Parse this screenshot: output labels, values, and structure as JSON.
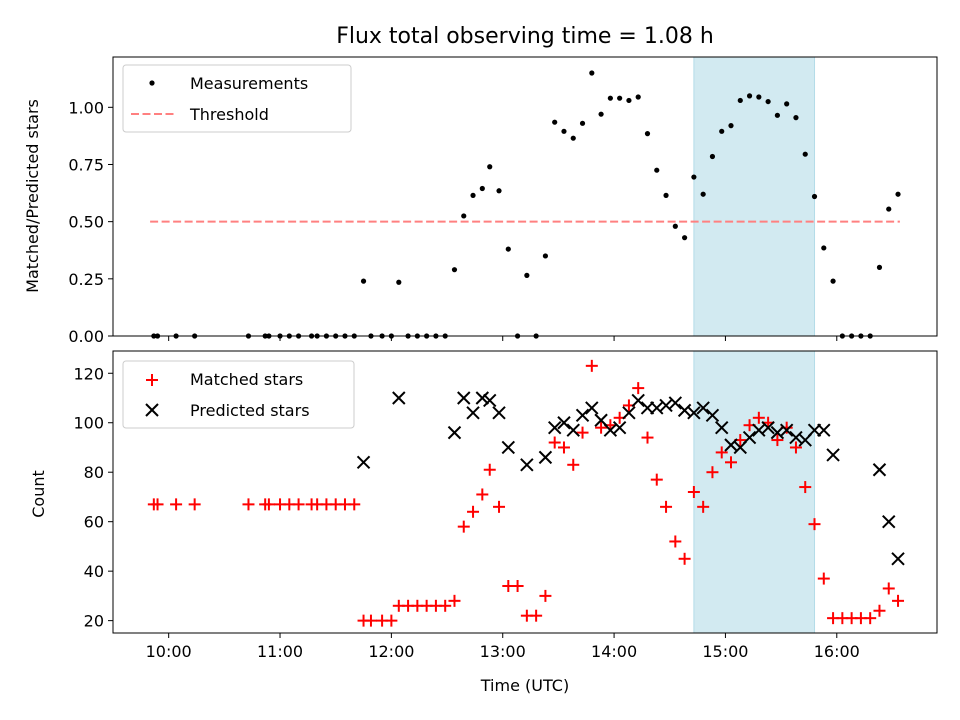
{
  "chart_data": [
    {
      "type": "scatter",
      "title": "Flux total observing time = 1.08 h",
      "xlabel": "",
      "ylabel": "Matched/Predicted stars",
      "xlim": [
        "09:30",
        "16:54"
      ],
      "ylim": [
        0,
        1.22
      ],
      "yticks": [
        0.0,
        0.25,
        0.5,
        0.75,
        1.0
      ],
      "ytick_labels": [
        "0.00",
        "0.25",
        "0.50",
        "0.75",
        "1.00"
      ],
      "legend": {
        "placement": "top-left",
        "entries": [
          "Measurements",
          "Threshold"
        ]
      },
      "highlight_span": {
        "x0": "14:43",
        "x1": "15:48",
        "color": "#add8e6"
      },
      "threshold": {
        "y": 0.5,
        "x0": "09:50",
        "x1": "16:34",
        "color": "#ff8080",
        "style": "dashed"
      },
      "series": [
        {
          "name": "Measurements",
          "marker": "dot",
          "color": "#000000",
          "points": [
            [
              "09:52",
              0.0
            ],
            [
              "09:54",
              0.0
            ],
            [
              "10:04",
              0.0
            ],
            [
              "10:14",
              0.0
            ],
            [
              "10:43",
              0.0
            ],
            [
              "10:52",
              0.0
            ],
            [
              "10:54",
              0.0
            ],
            [
              "11:00",
              0.0
            ],
            [
              "11:05",
              0.0
            ],
            [
              "11:10",
              0.0
            ],
            [
              "11:17",
              0.0
            ],
            [
              "11:20",
              0.0
            ],
            [
              "11:25",
              0.0
            ],
            [
              "11:30",
              0.0
            ],
            [
              "11:35",
              0.0
            ],
            [
              "11:40",
              0.0
            ],
            [
              "11:45",
              0.24
            ],
            [
              "11:49",
              0.0
            ],
            [
              "11:55",
              0.0
            ],
            [
              "12:00",
              0.0
            ],
            [
              "12:04",
              0.235
            ],
            [
              "12:09",
              0.0
            ],
            [
              "12:14",
              0.0
            ],
            [
              "12:19",
              0.0
            ],
            [
              "12:24",
              0.0
            ],
            [
              "12:29",
              0.0
            ],
            [
              "12:34",
              0.29
            ],
            [
              "12:39",
              0.525
            ],
            [
              "12:44",
              0.615
            ],
            [
              "12:49",
              0.645
            ],
            [
              "12:53",
              0.74
            ],
            [
              "12:58",
              0.635
            ],
            [
              "13:03",
              0.38
            ],
            [
              "13:08",
              0.0
            ],
            [
              "13:13",
              0.265
            ],
            [
              "13:18",
              0.0
            ],
            [
              "13:23",
              0.35
            ],
            [
              "13:28",
              0.935
            ],
            [
              "13:33",
              0.895
            ],
            [
              "13:38",
              0.865
            ],
            [
              "13:43",
              0.93
            ],
            [
              "13:48",
              1.15
            ],
            [
              "13:53",
              0.97
            ],
            [
              "13:58",
              1.04
            ],
            [
              "14:03",
              1.04
            ],
            [
              "14:08",
              1.03
            ],
            [
              "14:13",
              1.045
            ],
            [
              "14:18",
              0.885
            ],
            [
              "14:23",
              0.725
            ],
            [
              "14:28",
              0.615
            ],
            [
              "14:33",
              0.48
            ],
            [
              "14:38",
              0.43
            ],
            [
              "14:43",
              0.695
            ],
            [
              "14:48",
              0.62
            ],
            [
              "14:53",
              0.785
            ],
            [
              "14:58",
              0.895
            ],
            [
              "15:03",
              0.92
            ],
            [
              "15:08",
              1.03
            ],
            [
              "15:13",
              1.05
            ],
            [
              "15:18",
              1.045
            ],
            [
              "15:23",
              1.025
            ],
            [
              "15:28",
              0.965
            ],
            [
              "15:33",
              1.015
            ],
            [
              "15:38",
              0.955
            ],
            [
              "15:43",
              0.795
            ],
            [
              "15:48",
              0.61
            ],
            [
              "15:53",
              0.385
            ],
            [
              "15:58",
              0.24
            ],
            [
              "16:03",
              0.0
            ],
            [
              "16:08",
              0.0
            ],
            [
              "16:13",
              0.0
            ],
            [
              "16:18",
              0.0
            ],
            [
              "16:23",
              0.3
            ],
            [
              "16:28",
              0.555
            ],
            [
              "16:33",
              0.62
            ]
          ]
        }
      ]
    },
    {
      "type": "scatter",
      "title": "",
      "xlabel": "Time (UTC)",
      "ylabel": "Count",
      "xlim": [
        "09:30",
        "16:54"
      ],
      "ylim": [
        15,
        129
      ],
      "yticks": [
        20,
        40,
        60,
        80,
        100,
        120
      ],
      "ytick_labels": [
        "20",
        "40",
        "60",
        "80",
        "100",
        "120"
      ],
      "xticks": [
        "10:00",
        "11:00",
        "12:00",
        "13:00",
        "14:00",
        "15:00",
        "16:00"
      ],
      "xtick_labels": [
        "10:00",
        "11:00",
        "12:00",
        "13:00",
        "14:00",
        "15:00",
        "16:00"
      ],
      "legend": {
        "placement": "top-left",
        "entries": [
          "Matched stars",
          "Predicted stars"
        ]
      },
      "highlight_span": {
        "x0": "14:43",
        "x1": "15:48",
        "color": "#add8e6"
      },
      "series": [
        {
          "name": "Matched stars",
          "marker": "plus",
          "color": "#ff0000",
          "points": [
            [
              "09:52",
              67
            ],
            [
              "09:54",
              67
            ],
            [
              "10:04",
              67
            ],
            [
              "10:14",
              67
            ],
            [
              "10:43",
              67
            ],
            [
              "10:52",
              67
            ],
            [
              "10:54",
              67
            ],
            [
              "11:00",
              67
            ],
            [
              "11:05",
              67
            ],
            [
              "11:10",
              67
            ],
            [
              "11:17",
              67
            ],
            [
              "11:20",
              67
            ],
            [
              "11:25",
              67
            ],
            [
              "11:30",
              67
            ],
            [
              "11:35",
              67
            ],
            [
              "11:40",
              67
            ],
            [
              "11:45",
              20
            ],
            [
              "11:49",
              20
            ],
            [
              "11:55",
              20
            ],
            [
              "12:00",
              20
            ],
            [
              "12:04",
              26
            ],
            [
              "12:09",
              26
            ],
            [
              "12:14",
              26
            ],
            [
              "12:19",
              26
            ],
            [
              "12:24",
              26
            ],
            [
              "12:29",
              26
            ],
            [
              "12:34",
              28
            ],
            [
              "12:39",
              58
            ],
            [
              "12:44",
              64
            ],
            [
              "12:49",
              71
            ],
            [
              "12:53",
              81
            ],
            [
              "12:58",
              66
            ],
            [
              "13:03",
              34
            ],
            [
              "13:08",
              34
            ],
            [
              "13:13",
              22
            ],
            [
              "13:18",
              22
            ],
            [
              "13:23",
              30
            ],
            [
              "13:28",
              92
            ],
            [
              "13:33",
              90
            ],
            [
              "13:38",
              83
            ],
            [
              "13:43",
              96
            ],
            [
              "13:48",
              123
            ],
            [
              "13:53",
              98
            ],
            [
              "13:58",
              99
            ],
            [
              "14:03",
              102
            ],
            [
              "14:08",
              107
            ],
            [
              "14:13",
              114
            ],
            [
              "14:18",
              94
            ],
            [
              "14:23",
              77
            ],
            [
              "14:28",
              66
            ],
            [
              "14:33",
              52
            ],
            [
              "14:38",
              45
            ],
            [
              "14:43",
              72
            ],
            [
              "14:48",
              66
            ],
            [
              "14:53",
              80
            ],
            [
              "14:58",
              88
            ],
            [
              "15:03",
              84
            ],
            [
              "15:08",
              93
            ],
            [
              "15:13",
              99
            ],
            [
              "15:18",
              102
            ],
            [
              "15:23",
              100
            ],
            [
              "15:28",
              93
            ],
            [
              "15:33",
              98
            ],
            [
              "15:38",
              90
            ],
            [
              "15:43",
              74
            ],
            [
              "15:48",
              59
            ],
            [
              "15:53",
              37
            ],
            [
              "15:58",
              21
            ],
            [
              "16:03",
              21
            ],
            [
              "16:08",
              21
            ],
            [
              "16:13",
              21
            ],
            [
              "16:18",
              21
            ],
            [
              "16:23",
              24
            ],
            [
              "16:28",
              33
            ],
            [
              "16:33",
              28
            ]
          ]
        },
        {
          "name": "Predicted stars",
          "marker": "x",
          "color": "#000000",
          "points": [
            [
              "11:45",
              84
            ],
            [
              "12:04",
              110
            ],
            [
              "12:34",
              96
            ],
            [
              "12:39",
              110
            ],
            [
              "12:44",
              104
            ],
            [
              "12:49",
              110
            ],
            [
              "12:53",
              109
            ],
            [
              "12:58",
              104
            ],
            [
              "13:03",
              90
            ],
            [
              "13:13",
              83
            ],
            [
              "13:23",
              86
            ],
            [
              "13:28",
              98
            ],
            [
              "13:33",
              100
            ],
            [
              "13:38",
              97
            ],
            [
              "13:43",
              103
            ],
            [
              "13:48",
              106
            ],
            [
              "13:53",
              101
            ],
            [
              "13:58",
              97
            ],
            [
              "14:03",
              98
            ],
            [
              "14:08",
              104
            ],
            [
              "14:13",
              109
            ],
            [
              "14:18",
              106
            ],
            [
              "14:23",
              106
            ],
            [
              "14:28",
              107
            ],
            [
              "14:33",
              108
            ],
            [
              "14:38",
              105
            ],
            [
              "14:43",
              104
            ],
            [
              "14:48",
              106
            ],
            [
              "14:53",
              103
            ],
            [
              "14:58",
              98
            ],
            [
              "15:03",
              91
            ],
            [
              "15:08",
              90
            ],
            [
              "15:13",
              94
            ],
            [
              "15:18",
              97
            ],
            [
              "15:23",
              98
            ],
            [
              "15:28",
              96
            ],
            [
              "15:33",
              97
            ],
            [
              "15:38",
              94
            ],
            [
              "15:43",
              93
            ],
            [
              "15:48",
              97
            ],
            [
              "15:53",
              97
            ],
            [
              "15:58",
              87
            ],
            [
              "16:23",
              81
            ],
            [
              "16:28",
              60
            ],
            [
              "16:33",
              45
            ]
          ]
        }
      ]
    }
  ]
}
